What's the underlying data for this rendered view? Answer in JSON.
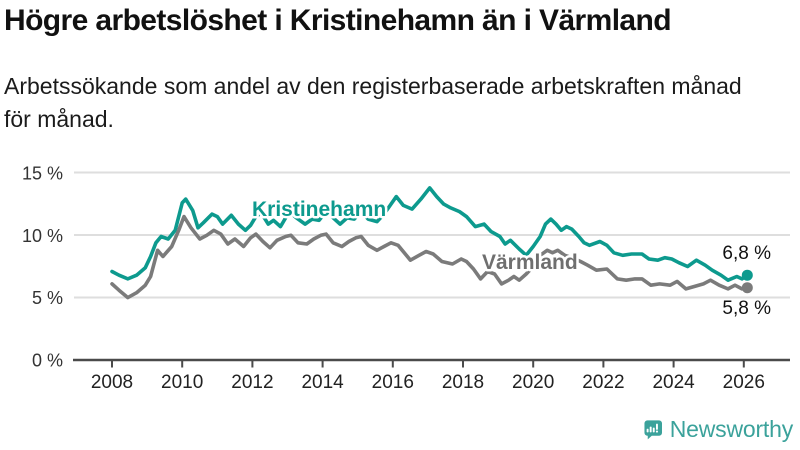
{
  "chart_data": {
    "type": "line",
    "title": "Högre arbetslöshet i Kristinehamn än i Värmland",
    "subtitle": "Arbetssökande som andel av den registerbaserade arbetskraften månad för månad.",
    "xlabel": "",
    "ylabel": "",
    "unit": "%",
    "grid": "horizontal",
    "grid_color": "#dedede",
    "axis_color": "#4a4a4a",
    "xlim": [
      2006.9,
      2027.3
    ],
    "ylim": [
      0,
      16.5
    ],
    "x_tick_years": [
      2008,
      2010,
      2012,
      2014,
      2016,
      2018,
      2020,
      2022,
      2024,
      2026
    ],
    "x_ticks": [
      "2008",
      "2010",
      "2012",
      "2014",
      "2016",
      "2018",
      "2020",
      "2022",
      "2024",
      "2026"
    ],
    "y_tick_values": [
      15,
      10,
      5,
      0
    ],
    "y_ticks": [
      "15 %",
      "10 %",
      "5 %",
      "0 %"
    ],
    "series": [
      {
        "name": "Kristinehamn",
        "color": "#0d9a8e",
        "end_label": "6,8 %",
        "last_value": 6.8,
        "points": [
          [
            2008.0,
            7.1
          ],
          [
            2008.2,
            6.8
          ],
          [
            2008.45,
            6.5
          ],
          [
            2008.7,
            6.8
          ],
          [
            2008.95,
            7.4
          ],
          [
            2009.1,
            8.3
          ],
          [
            2009.25,
            9.4
          ],
          [
            2009.4,
            9.9
          ],
          [
            2009.6,
            9.7
          ],
          [
            2009.8,
            10.4
          ],
          [
            2010.0,
            12.6
          ],
          [
            2010.1,
            12.9
          ],
          [
            2010.3,
            12.0
          ],
          [
            2010.45,
            10.6
          ],
          [
            2010.6,
            11.0
          ],
          [
            2010.85,
            11.7
          ],
          [
            2011.0,
            11.5
          ],
          [
            2011.15,
            10.9
          ],
          [
            2011.4,
            11.6
          ],
          [
            2011.6,
            10.9
          ],
          [
            2011.8,
            10.4
          ],
          [
            2011.95,
            10.8
          ],
          [
            2012.1,
            11.5
          ],
          [
            2012.25,
            11.8
          ],
          [
            2012.45,
            10.9
          ],
          [
            2012.6,
            11.2
          ],
          [
            2012.8,
            10.7
          ],
          [
            2013.05,
            11.9
          ],
          [
            2013.25,
            11.4
          ],
          [
            2013.5,
            10.9
          ],
          [
            2013.7,
            11.3
          ],
          [
            2013.9,
            11.2
          ],
          [
            2014.1,
            11.9
          ],
          [
            2014.3,
            11.4
          ],
          [
            2014.5,
            10.9
          ],
          [
            2014.7,
            11.4
          ],
          [
            2014.9,
            11.3
          ],
          [
            2015.1,
            11.9
          ],
          [
            2015.3,
            11.3
          ],
          [
            2015.55,
            11.1
          ],
          [
            2015.75,
            11.7
          ],
          [
            2015.95,
            12.5
          ],
          [
            2016.1,
            13.1
          ],
          [
            2016.3,
            12.4
          ],
          [
            2016.55,
            12.1
          ],
          [
            2016.8,
            12.9
          ],
          [
            2017.05,
            13.8
          ],
          [
            2017.25,
            13.1
          ],
          [
            2017.45,
            12.5
          ],
          [
            2017.65,
            12.2
          ],
          [
            2017.9,
            11.9
          ],
          [
            2018.1,
            11.5
          ],
          [
            2018.35,
            10.7
          ],
          [
            2018.6,
            10.9
          ],
          [
            2018.8,
            10.3
          ],
          [
            2019.05,
            9.9
          ],
          [
            2019.2,
            9.3
          ],
          [
            2019.35,
            9.6
          ],
          [
            2019.6,
            8.9
          ],
          [
            2019.8,
            8.4
          ],
          [
            2020.0,
            9.1
          ],
          [
            2020.2,
            9.9
          ],
          [
            2020.35,
            10.9
          ],
          [
            2020.5,
            11.3
          ],
          [
            2020.65,
            10.9
          ],
          [
            2020.8,
            10.4
          ],
          [
            2020.95,
            10.7
          ],
          [
            2021.1,
            10.5
          ],
          [
            2021.3,
            9.9
          ],
          [
            2021.45,
            9.4
          ],
          [
            2021.6,
            9.2
          ],
          [
            2021.9,
            9.5
          ],
          [
            2022.1,
            9.2
          ],
          [
            2022.3,
            8.6
          ],
          [
            2022.55,
            8.4
          ],
          [
            2022.8,
            8.5
          ],
          [
            2023.1,
            8.5
          ],
          [
            2023.3,
            8.1
          ],
          [
            2023.55,
            8.0
          ],
          [
            2023.75,
            8.2
          ],
          [
            2023.95,
            8.1
          ],
          [
            2024.15,
            7.8
          ],
          [
            2024.4,
            7.5
          ],
          [
            2024.65,
            8.0
          ],
          [
            2024.9,
            7.6
          ],
          [
            2025.1,
            7.2
          ],
          [
            2025.35,
            6.8
          ],
          [
            2025.55,
            6.4
          ],
          [
            2025.8,
            6.7
          ],
          [
            2025.95,
            6.5
          ],
          [
            2026.1,
            6.8
          ]
        ]
      },
      {
        "name": "Värmland",
        "color": "#7b7b7b",
        "label_color": "#6f6f6f",
        "end_label": "5,8 %",
        "last_value": 5.8,
        "points": [
          [
            2008.0,
            6.1
          ],
          [
            2008.2,
            5.6
          ],
          [
            2008.45,
            5.0
          ],
          [
            2008.7,
            5.4
          ],
          [
            2008.95,
            6.0
          ],
          [
            2009.1,
            6.7
          ],
          [
            2009.3,
            8.8
          ],
          [
            2009.45,
            8.3
          ],
          [
            2009.7,
            9.1
          ],
          [
            2009.9,
            10.4
          ],
          [
            2010.05,
            11.5
          ],
          [
            2010.25,
            10.6
          ],
          [
            2010.5,
            9.7
          ],
          [
            2010.7,
            10.0
          ],
          [
            2010.9,
            10.4
          ],
          [
            2011.1,
            10.1
          ],
          [
            2011.3,
            9.3
          ],
          [
            2011.5,
            9.7
          ],
          [
            2011.75,
            9.1
          ],
          [
            2011.95,
            9.8
          ],
          [
            2012.1,
            10.1
          ],
          [
            2012.3,
            9.5
          ],
          [
            2012.5,
            9.0
          ],
          [
            2012.7,
            9.6
          ],
          [
            2012.95,
            9.9
          ],
          [
            2013.1,
            10.0
          ],
          [
            2013.3,
            9.4
          ],
          [
            2013.55,
            9.3
          ],
          [
            2013.75,
            9.7
          ],
          [
            2013.95,
            10.0
          ],
          [
            2014.1,
            10.1
          ],
          [
            2014.3,
            9.4
          ],
          [
            2014.55,
            9.1
          ],
          [
            2014.75,
            9.5
          ],
          [
            2014.95,
            9.8
          ],
          [
            2015.1,
            9.9
          ],
          [
            2015.3,
            9.2
          ],
          [
            2015.55,
            8.8
          ],
          [
            2015.75,
            9.1
          ],
          [
            2015.95,
            9.4
          ],
          [
            2016.15,
            9.2
          ],
          [
            2016.5,
            8.0
          ],
          [
            2016.75,
            8.4
          ],
          [
            2016.95,
            8.7
          ],
          [
            2017.15,
            8.5
          ],
          [
            2017.4,
            7.9
          ],
          [
            2017.7,
            7.7
          ],
          [
            2017.95,
            8.1
          ],
          [
            2018.1,
            7.9
          ],
          [
            2018.3,
            7.3
          ],
          [
            2018.5,
            6.5
          ],
          [
            2018.7,
            7.1
          ],
          [
            2018.9,
            6.9
          ],
          [
            2019.1,
            6.1
          ],
          [
            2019.3,
            6.4
          ],
          [
            2019.45,
            6.7
          ],
          [
            2019.6,
            6.4
          ],
          [
            2019.8,
            6.9
          ],
          [
            2020.0,
            7.5
          ],
          [
            2020.2,
            8.4
          ],
          [
            2020.4,
            8.8
          ],
          [
            2020.55,
            8.6
          ],
          [
            2020.7,
            8.8
          ],
          [
            2020.9,
            8.4
          ],
          [
            2021.1,
            8.2
          ],
          [
            2021.35,
            7.9
          ],
          [
            2021.55,
            7.6
          ],
          [
            2021.8,
            7.2
          ],
          [
            2022.1,
            7.3
          ],
          [
            2022.4,
            6.5
          ],
          [
            2022.65,
            6.4
          ],
          [
            2022.9,
            6.5
          ],
          [
            2023.1,
            6.5
          ],
          [
            2023.35,
            6.0
          ],
          [
            2023.6,
            6.1
          ],
          [
            2023.9,
            6.0
          ],
          [
            2024.1,
            6.3
          ],
          [
            2024.35,
            5.7
          ],
          [
            2024.6,
            5.9
          ],
          [
            2024.85,
            6.1
          ],
          [
            2025.05,
            6.4
          ],
          [
            2025.3,
            6.0
          ],
          [
            2025.55,
            5.7
          ],
          [
            2025.75,
            6.0
          ],
          [
            2025.95,
            5.7
          ],
          [
            2026.1,
            5.8
          ]
        ]
      }
    ]
  },
  "branding": {
    "name": "Newsworthy",
    "color": "#3ba29b",
    "icon": "newsworthy-bubble-barchart-icon"
  }
}
